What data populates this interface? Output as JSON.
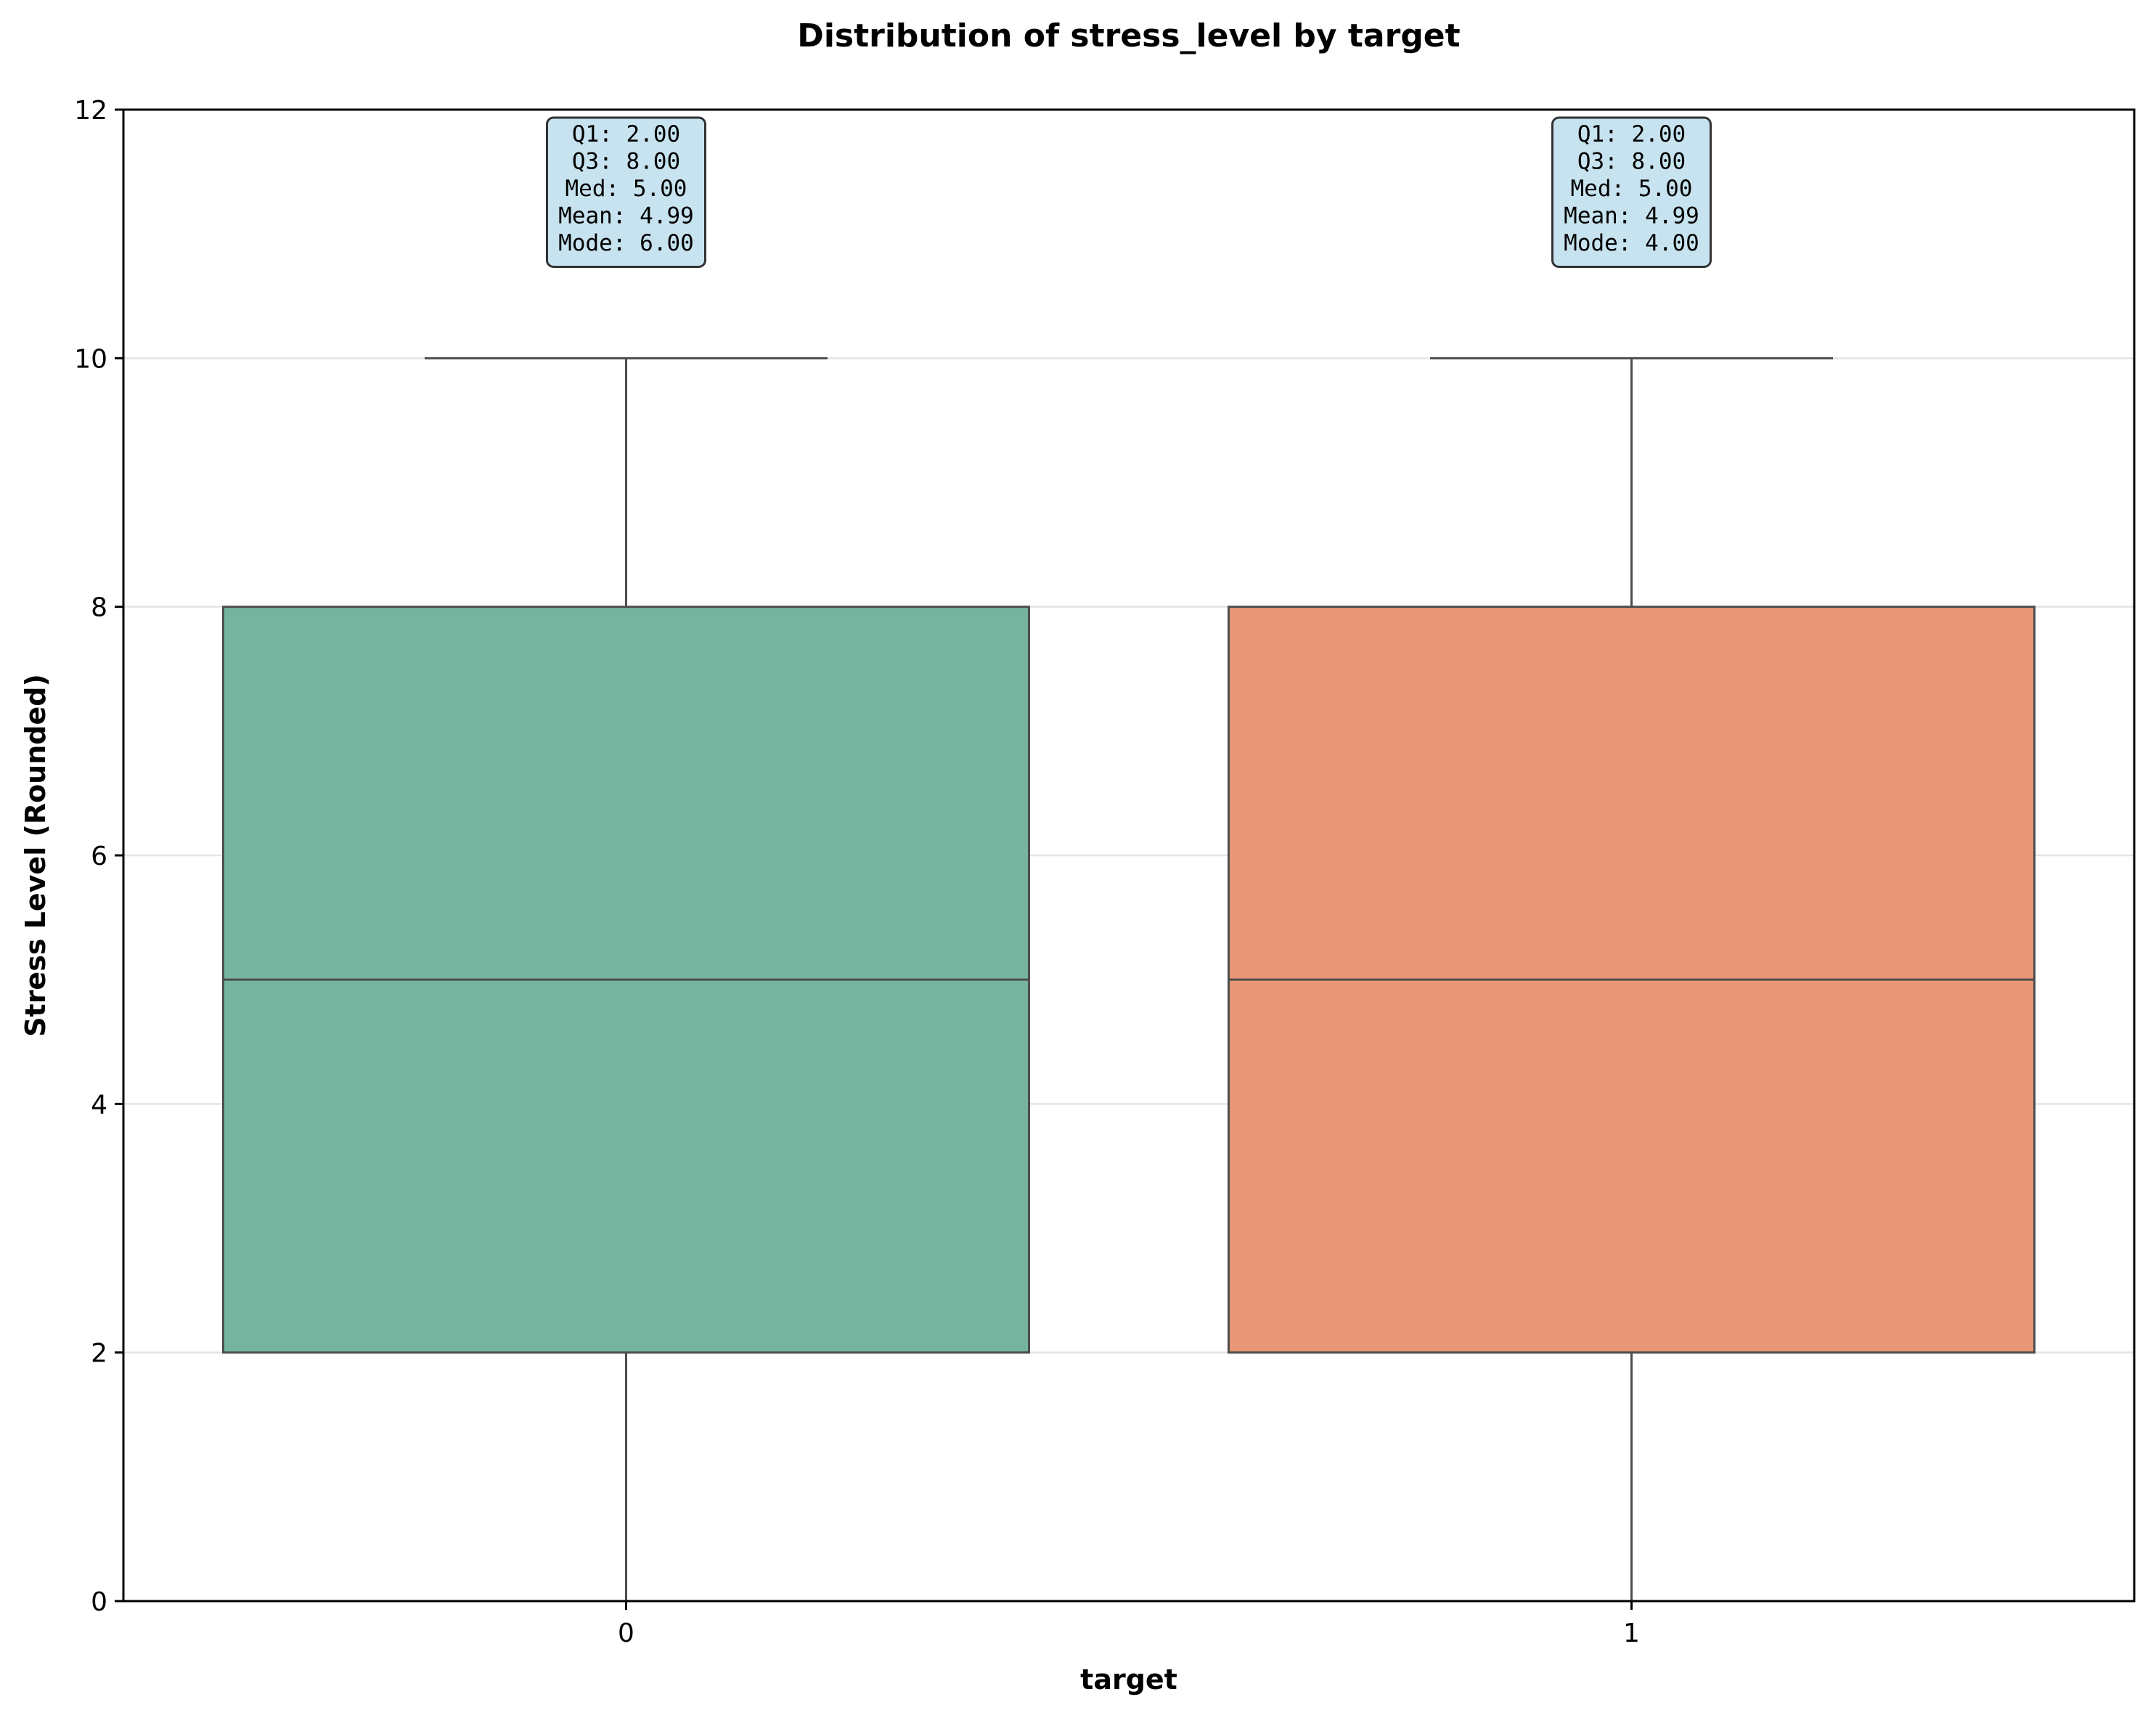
{
  "chart_data": {
    "type": "box",
    "title": "Distribution of stress_level by target",
    "xlabel": "target",
    "ylabel": "Stress Level (Rounded)",
    "categories": [
      "0",
      "1"
    ],
    "ylim": [
      0,
      12
    ],
    "yticks": [
      0,
      2,
      4,
      6,
      8,
      10,
      12
    ],
    "grid": "horizontal",
    "boxes": [
      {
        "category": "0",
        "whisker_low": 0,
        "q1": 2,
        "median": 5,
        "q3": 8,
        "whisker_high": 10,
        "color": "#75b5a0",
        "stats_lines": [
          "Q1: 2.00",
          "Q3: 8.00",
          "Med: 5.00",
          "Mean: 4.99",
          "Mode: 6.00"
        ]
      },
      {
        "category": "1",
        "whisker_low": 0,
        "q1": 2,
        "median": 5,
        "q3": 8,
        "whisker_high": 10,
        "color": "#e89675",
        "stats_lines": [
          "Q1: 2.00",
          "Q3: 8.00",
          "Med: 5.00",
          "Mean: 4.99",
          "Mode: 4.00"
        ]
      }
    ],
    "colors": {
      "line": "#4d4d4d",
      "grid": "#e4e4e4",
      "stat_box_fill": "#c7e3ef",
      "stat_box_edge": "#333333"
    }
  }
}
